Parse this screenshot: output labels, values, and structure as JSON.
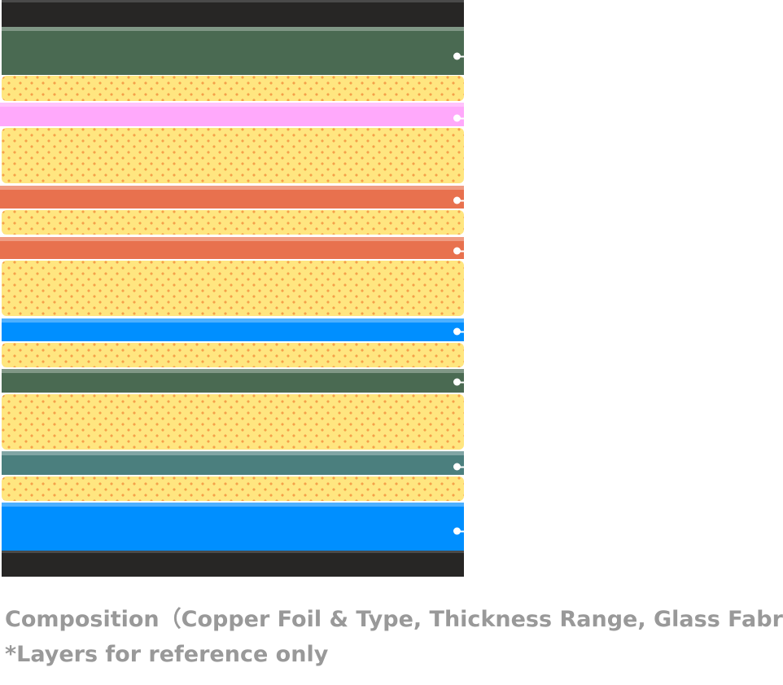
{
  "colors": {
    "core_black": "#272625",
    "green": "#4a6a52",
    "pink": "#ffa9fb",
    "orange": "#e8714e",
    "blue": "#008fff",
    "teal": "#4b7f7e",
    "prepreg_yellow": "#ffe680",
    "prepreg_dot": "#f5a04a",
    "caption_gray": "#999999"
  },
  "caption": {
    "line1": "Composition（Copper Foil & Type, Thickness Range, Glass Fabric)",
    "line2": "*Layers for reference only"
  }
}
